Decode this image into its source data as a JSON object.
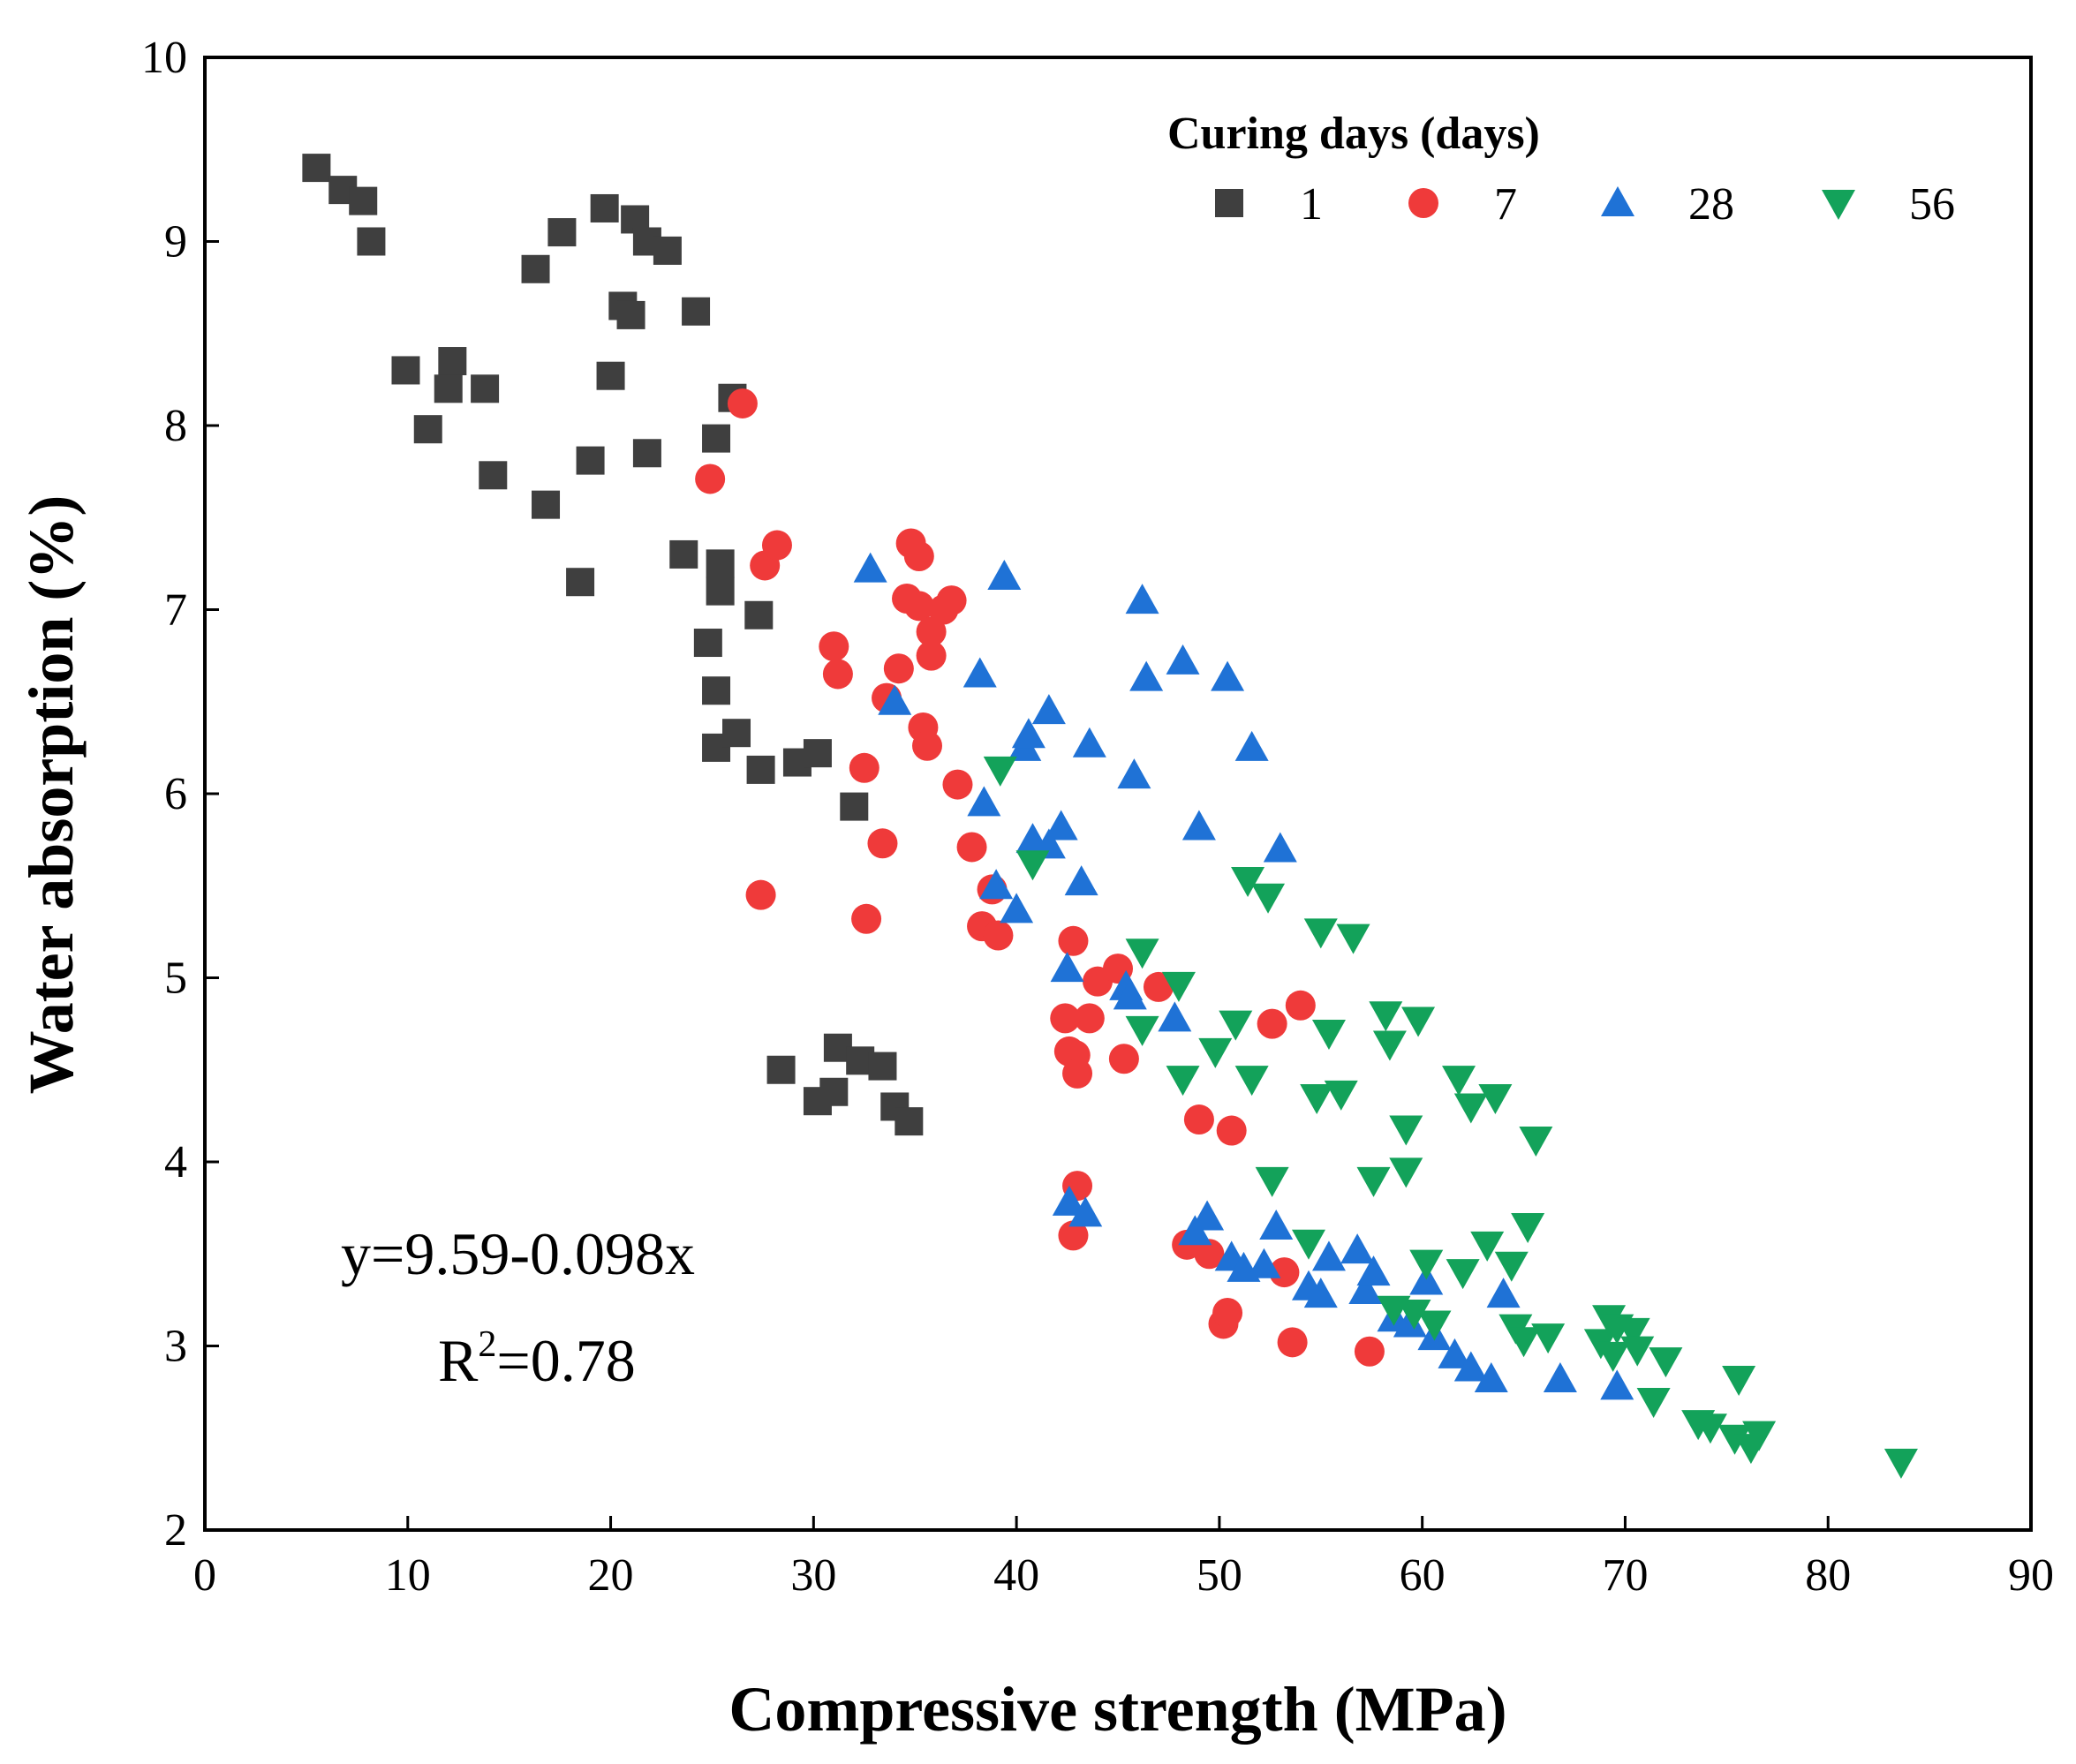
{
  "chart_data": {
    "type": "scatter",
    "xlabel": "Compressive strength (MPa)",
    "ylabel": "Water absorption (%)",
    "xlim": [
      0,
      90
    ],
    "ylim": [
      2,
      10
    ],
    "x_ticks": [
      0,
      10,
      20,
      30,
      40,
      50,
      60,
      70,
      80,
      90
    ],
    "y_ticks": [
      2,
      3,
      4,
      5,
      6,
      7,
      8,
      9,
      10
    ],
    "grid": false,
    "legend": {
      "title": "Curing days (days)",
      "placement": "top-right",
      "entries": [
        "1",
        "7",
        "28",
        "56"
      ]
    },
    "annotation": {
      "equation": "y=9.59-0.098x",
      "r2_prefix": "R",
      "r2_sup": "2",
      "r2_value": "=0.78"
    },
    "series": [
      {
        "name": "1",
        "marker": "square",
        "color": "#3f3f3f",
        "points": [
          [
            5.5,
            9.4
          ],
          [
            6.8,
            9.28
          ],
          [
            7.8,
            9.22
          ],
          [
            8.2,
            9.0
          ],
          [
            9.9,
            8.3
          ],
          [
            11.0,
            7.98
          ],
          [
            12.2,
            8.35
          ],
          [
            12.0,
            8.2
          ],
          [
            13.8,
            8.2
          ],
          [
            14.2,
            7.73
          ],
          [
            16.3,
            8.85
          ],
          [
            17.6,
            9.05
          ],
          [
            16.8,
            7.57
          ],
          [
            18.5,
            7.15
          ],
          [
            19.0,
            7.81
          ],
          [
            19.7,
            9.18
          ],
          [
            20.0,
            8.27
          ],
          [
            20.6,
            8.65
          ],
          [
            21.0,
            8.6
          ],
          [
            21.2,
            9.12
          ],
          [
            21.8,
            9.0
          ],
          [
            21.8,
            7.85
          ],
          [
            22.8,
            8.95
          ],
          [
            24.2,
            8.62
          ],
          [
            23.6,
            7.3
          ],
          [
            24.8,
            6.82
          ],
          [
            25.2,
            6.56
          ],
          [
            25.2,
            7.93
          ],
          [
            25.4,
            7.25
          ],
          [
            25.4,
            7.1
          ],
          [
            25.2,
            6.25
          ],
          [
            26.2,
            6.33
          ],
          [
            26.0,
            8.15
          ],
          [
            27.3,
            6.97
          ],
          [
            27.4,
            6.13
          ],
          [
            29.2,
            6.17
          ],
          [
            30.2,
            6.22
          ],
          [
            32.0,
            5.93
          ],
          [
            28.4,
            4.5
          ],
          [
            30.2,
            4.33
          ],
          [
            31.0,
            4.38
          ],
          [
            31.2,
            4.62
          ],
          [
            32.3,
            4.55
          ],
          [
            33.4,
            4.52
          ],
          [
            34.0,
            4.3
          ],
          [
            34.7,
            4.22
          ]
        ]
      },
      {
        "name": "7",
        "marker": "circle",
        "color": "#ef3a3a",
        "points": [
          [
            26.5,
            8.12
          ],
          [
            24.9,
            7.71
          ],
          [
            27.6,
            7.24
          ],
          [
            28.2,
            7.35
          ],
          [
            27.4,
            5.45
          ],
          [
            31.0,
            6.8
          ],
          [
            31.2,
            6.65
          ],
          [
            32.5,
            6.14
          ],
          [
            32.6,
            5.32
          ],
          [
            33.4,
            5.73
          ],
          [
            33.6,
            6.52
          ],
          [
            34.2,
            6.68
          ],
          [
            34.6,
            7.06
          ],
          [
            34.8,
            7.36
          ],
          [
            35.2,
            7.29
          ],
          [
            35.2,
            7.02
          ],
          [
            35.4,
            6.36
          ],
          [
            35.6,
            6.26
          ],
          [
            35.8,
            6.88
          ],
          [
            35.8,
            6.75
          ],
          [
            36.4,
            7.0
          ],
          [
            36.8,
            7.05
          ],
          [
            37.1,
            6.05
          ],
          [
            37.8,
            5.71
          ],
          [
            38.3,
            5.28
          ],
          [
            38.8,
            5.48
          ],
          [
            39.1,
            5.23
          ],
          [
            42.4,
            4.78
          ],
          [
            42.6,
            4.6
          ],
          [
            42.8,
            5.2
          ],
          [
            42.9,
            4.58
          ],
          [
            43.0,
            4.48
          ],
          [
            43.0,
            3.87
          ],
          [
            42.8,
            3.6
          ],
          [
            43.6,
            4.78
          ],
          [
            44.0,
            4.98
          ],
          [
            45.0,
            5.05
          ],
          [
            45.3,
            4.56
          ],
          [
            47.0,
            4.95
          ],
          [
            48.4,
            3.55
          ],
          [
            49.0,
            4.23
          ],
          [
            49.5,
            3.5
          ],
          [
            50.2,
            3.12
          ],
          [
            50.4,
            3.18
          ],
          [
            50.6,
            4.17
          ],
          [
            52.6,
            4.75
          ],
          [
            53.2,
            3.4
          ],
          [
            53.6,
            3.02
          ],
          [
            54.0,
            4.85
          ],
          [
            57.4,
            2.97
          ]
        ]
      },
      {
        "name": "28",
        "marker": "triangle-up",
        "color": "#1f72d6",
        "points": [
          [
            32.8,
            7.22
          ],
          [
            34.0,
            6.5
          ],
          [
            38.2,
            6.65
          ],
          [
            38.4,
            5.95
          ],
          [
            39.0,
            5.5
          ],
          [
            39.4,
            7.18
          ],
          [
            40.0,
            5.37
          ],
          [
            40.4,
            6.25
          ],
          [
            40.6,
            6.32
          ],
          [
            40.8,
            5.75
          ],
          [
            41.6,
            5.72
          ],
          [
            41.6,
            6.45
          ],
          [
            42.2,
            5.82
          ],
          [
            42.5,
            5.05
          ],
          [
            42.6,
            3.78
          ],
          [
            43.2,
            5.52
          ],
          [
            43.4,
            3.72
          ],
          [
            43.6,
            6.27
          ],
          [
            45.4,
            4.95
          ],
          [
            45.6,
            4.9
          ],
          [
            45.8,
            6.1
          ],
          [
            46.2,
            7.05
          ],
          [
            46.4,
            6.63
          ],
          [
            47.8,
            4.78
          ],
          [
            48.2,
            6.72
          ],
          [
            48.8,
            3.62
          ],
          [
            49.0,
            5.82
          ],
          [
            49.4,
            3.7
          ],
          [
            50.4,
            6.63
          ],
          [
            50.6,
            3.48
          ],
          [
            51.2,
            3.42
          ],
          [
            51.6,
            6.25
          ],
          [
            52.2,
            3.44
          ],
          [
            52.8,
            3.65
          ],
          [
            53.0,
            5.7
          ],
          [
            54.4,
            3.32
          ],
          [
            55.0,
            3.28
          ],
          [
            55.4,
            3.48
          ],
          [
            56.8,
            3.52
          ],
          [
            57.2,
            3.3
          ],
          [
            57.6,
            3.4
          ],
          [
            58.6,
            3.15
          ],
          [
            59.4,
            3.12
          ],
          [
            60.2,
            3.35
          ],
          [
            60.6,
            3.05
          ],
          [
            61.6,
            2.95
          ],
          [
            62.4,
            2.88
          ],
          [
            63.4,
            2.82
          ],
          [
            64.0,
            3.28
          ],
          [
            66.8,
            2.82
          ],
          [
            69.6,
            2.78
          ]
        ]
      },
      {
        "name": "56",
        "marker": "triangle-down",
        "color": "#13a25a",
        "points": [
          [
            39.2,
            6.13
          ],
          [
            40.8,
            5.62
          ],
          [
            46.2,
            5.14
          ],
          [
            46.2,
            4.72
          ],
          [
            48.0,
            4.96
          ],
          [
            48.2,
            4.45
          ],
          [
            49.8,
            4.6
          ],
          [
            50.8,
            4.75
          ],
          [
            51.4,
            5.53
          ],
          [
            51.6,
            4.45
          ],
          [
            52.4,
            5.44
          ],
          [
            52.6,
            3.9
          ],
          [
            54.4,
            3.56
          ],
          [
            54.8,
            4.35
          ],
          [
            55.0,
            5.25
          ],
          [
            55.4,
            4.7
          ],
          [
            56.0,
            4.37
          ],
          [
            56.6,
            5.22
          ],
          [
            57.6,
            3.9
          ],
          [
            58.2,
            4.8
          ],
          [
            58.4,
            4.64
          ],
          [
            58.6,
            3.2
          ],
          [
            59.2,
            4.18
          ],
          [
            59.2,
            3.95
          ],
          [
            59.6,
            3.18
          ],
          [
            59.8,
            4.77
          ],
          [
            60.2,
            3.45
          ],
          [
            60.6,
            3.12
          ],
          [
            61.8,
            4.45
          ],
          [
            62.0,
            3.4
          ],
          [
            62.4,
            4.3
          ],
          [
            63.2,
            3.55
          ],
          [
            63.6,
            4.35
          ],
          [
            64.4,
            3.44
          ],
          [
            64.6,
            3.1
          ],
          [
            65.0,
            3.03
          ],
          [
            65.2,
            3.65
          ],
          [
            65.6,
            4.12
          ],
          [
            66.2,
            3.05
          ],
          [
            68.8,
            3.02
          ],
          [
            69.2,
            3.15
          ],
          [
            69.4,
            2.95
          ],
          [
            69.6,
            3.1
          ],
          [
            70.4,
            3.08
          ],
          [
            70.6,
            2.98
          ],
          [
            71.4,
            2.7
          ],
          [
            72.0,
            2.92
          ],
          [
            73.6,
            2.58
          ],
          [
            74.2,
            2.56
          ],
          [
            75.4,
            2.5
          ],
          [
            75.6,
            2.82
          ],
          [
            76.2,
            2.45
          ],
          [
            76.6,
            2.52
          ],
          [
            83.6,
            2.37
          ]
        ]
      }
    ]
  }
}
